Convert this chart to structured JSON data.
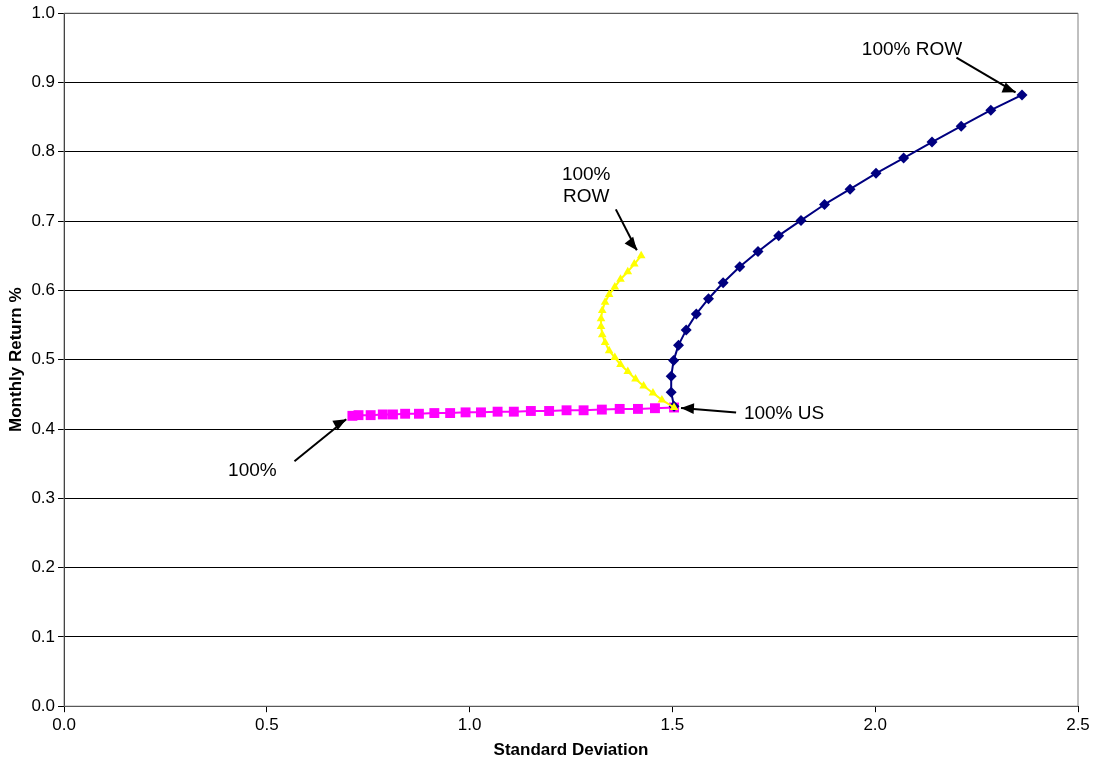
{
  "chart_data": {
    "type": "line",
    "xlabel": "Standard Deviation",
    "ylabel": "Monthly Return %",
    "xlim": [
      0,
      2.5
    ],
    "xticks": [
      {
        "value": 0,
        "label": "0.0"
      },
      {
        "value": 0.5,
        "label": "0.5"
      },
      {
        "value": 1,
        "label": "1.0"
      },
      {
        "value": 1.5,
        "label": "1.5"
      },
      {
        "value": 2,
        "label": "2.0"
      },
      {
        "value": 2.5,
        "label": "2.5"
      }
    ],
    "ylim": [
      0,
      1
    ],
    "yticks": [
      {
        "value": 0,
        "label": "0.0"
      },
      {
        "value": 0.1,
        "label": "0.1"
      },
      {
        "value": 0.2,
        "label": "0.2"
      },
      {
        "value": 0.3,
        "label": "0.3"
      },
      {
        "value": 0.4,
        "label": "0.4"
      },
      {
        "value": 0.5,
        "label": "0.5"
      },
      {
        "value": 0.6,
        "label": "0.6"
      },
      {
        "value": 0.7,
        "label": "0.7"
      },
      {
        "value": 0.8,
        "label": "0.8"
      },
      {
        "value": 0.9,
        "label": "0.9"
      },
      {
        "value": 1,
        "label": "1.0"
      }
    ],
    "grid": "y",
    "legend": false,
    "series": [
      {
        "color": "#ff00ff",
        "marker": "square",
        "x": [
          0.711,
          0.726,
          0.756,
          0.786,
          0.811,
          0.841,
          0.875,
          0.913,
          0.952,
          0.99,
          1.028,
          1.069,
          1.109,
          1.151,
          1.196,
          1.239,
          1.281,
          1.326,
          1.37,
          1.415,
          1.457,
          1.504
        ],
        "values": [
          0.419,
          0.42,
          0.42,
          0.421,
          0.421,
          0.422,
          0.422,
          0.423,
          0.423,
          0.424,
          0.424,
          0.425,
          0.425,
          0.426,
          0.426,
          0.427,
          0.427,
          0.428,
          0.429,
          0.429,
          0.43,
          0.431
        ]
      },
      {
        "color": "#000080",
        "marker": "diamond",
        "x": [
          1.504,
          1.497,
          1.497,
          1.503,
          1.515,
          1.534,
          1.559,
          1.589,
          1.625,
          1.666,
          1.711,
          1.762,
          1.817,
          1.875,
          1.938,
          2.002,
          2.07,
          2.14,
          2.212,
          2.285,
          2.362
        ],
        "values": [
          0.433,
          0.453,
          0.476,
          0.499,
          0.521,
          0.543,
          0.566,
          0.588,
          0.611,
          0.634,
          0.656,
          0.679,
          0.701,
          0.724,
          0.746,
          0.769,
          0.791,
          0.814,
          0.837,
          0.86,
          0.882
        ]
      },
      {
        "color": "#ffff00",
        "marker": "triangle",
        "x": [
          1.504,
          1.474,
          1.452,
          1.429,
          1.409,
          1.39,
          1.372,
          1.358,
          1.344,
          1.334,
          1.327,
          1.324,
          1.324,
          1.327,
          1.334,
          1.344,
          1.358,
          1.372,
          1.39,
          1.406,
          1.423
        ],
        "values": [
          0.431,
          0.442,
          0.452,
          0.462,
          0.472,
          0.483,
          0.493,
          0.503,
          0.513,
          0.525,
          0.536,
          0.548,
          0.559,
          0.571,
          0.583,
          0.594,
          0.605,
          0.616,
          0.627,
          0.638,
          0.65
        ]
      }
    ],
    "annotations": [
      {
        "text": "100% ROW",
        "x": 2.362,
        "y": 0.882
      },
      {
        "text": "100% ROW",
        "x": 1.423,
        "y": 0.65
      },
      {
        "text": "100% US",
        "x": 1.504,
        "y": 0.431
      },
      {
        "text": "100%",
        "x": 0.711,
        "y": 0.419
      }
    ]
  }
}
